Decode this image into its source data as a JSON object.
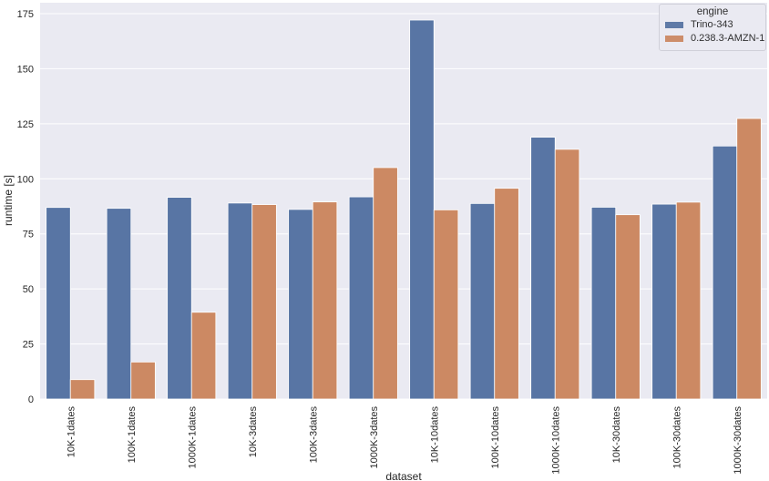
{
  "chart_data": {
    "type": "bar",
    "title": "",
    "xlabel": "dataset",
    "ylabel": "runtime [s]",
    "ylim": [
      0,
      180
    ],
    "yticks": [
      0,
      25,
      50,
      75,
      100,
      125,
      150,
      175
    ],
    "grid": true,
    "legend": {
      "title": "engine",
      "position": "upper right"
    },
    "categories": [
      "10K-1dates",
      "100K-1dates",
      "1000K-1dates",
      "10K-3dates",
      "100K-3dates",
      "1000K-3dates",
      "10K-10dates",
      "100K-10dates",
      "1000K-10dates",
      "10K-30dates",
      "100K-30dates",
      "1000K-30dates"
    ],
    "series": [
      {
        "name": "Trino-343",
        "color": "#5875a4",
        "values": [
          87.0,
          86.6,
          91.6,
          89.0,
          86.1,
          91.8,
          172.1,
          88.8,
          118.9,
          87.1,
          88.5,
          114.9
        ]
      },
      {
        "name": "0.238.3-AMZN-1",
        "color": "#cc8963",
        "values": [
          8.8,
          16.8,
          39.4,
          88.3,
          89.5,
          105.1,
          85.9,
          95.7,
          113.4,
          83.7,
          89.4,
          127.4
        ]
      }
    ]
  },
  "style": {
    "plot_bg": "#eaeaf2",
    "grid_color": "#ffffff"
  }
}
